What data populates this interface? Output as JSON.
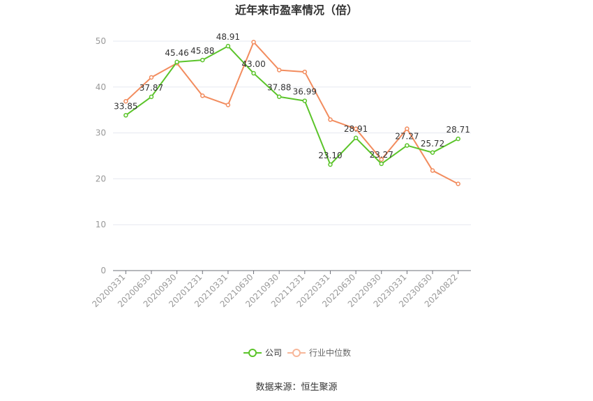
{
  "chart_data": {
    "type": "line",
    "title": "近年来市盈率情况（倍）",
    "xlabel": "",
    "ylabel": "",
    "ylim": [
      0,
      50
    ],
    "yticks": [
      0,
      10,
      20,
      30,
      40,
      50
    ],
    "categories": [
      "20200331",
      "20200630",
      "20200930",
      "20201231",
      "20210331",
      "20210630",
      "20210930",
      "20211231",
      "20220331",
      "20220630",
      "20220930",
      "20230331",
      "20230630",
      "20240822"
    ],
    "series": [
      {
        "name": "公司",
        "color": "#5bc42a",
        "values": [
          33.85,
          37.87,
          45.46,
          45.88,
          48.91,
          43.0,
          37.88,
          36.99,
          23.1,
          28.91,
          23.27,
          27.27,
          25.72,
          28.71
        ],
        "data_labels": [
          "33.85",
          "37.87",
          "45.46",
          "45.88",
          "48.91",
          "43.00",
          "37.88",
          "36.99",
          "23.10",
          "28.91",
          "23.27",
          "27.27",
          "25.72",
          "28.71"
        ]
      },
      {
        "name": "行业中位数",
        "color": "#f28c5e",
        "values": [
          36.9,
          42.1,
          45.2,
          38.1,
          36.1,
          49.8,
          43.7,
          43.3,
          32.9,
          30.9,
          24.2,
          30.9,
          21.8,
          18.9
        ]
      }
    ],
    "grid": true,
    "legend_position": "bottom-center"
  },
  "source_text": "数据来源：恒生聚源"
}
